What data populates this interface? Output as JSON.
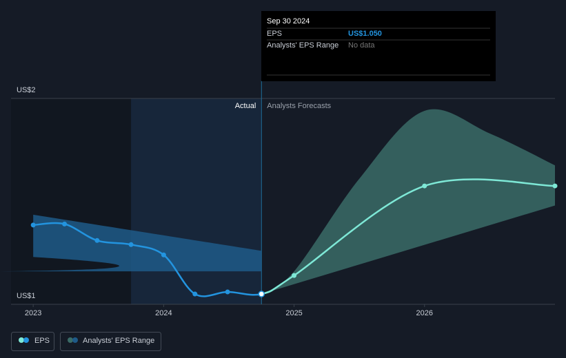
{
  "chart_data": {
    "type": "line",
    "xlim": [
      2022.83,
      2027
    ],
    "xticks": [
      2023,
      2024,
      2025,
      2026
    ],
    "ylim": [
      1,
      2
    ],
    "yticks": [
      {
        "value": 1,
        "label": "US$1"
      },
      {
        "value": 2,
        "label": "US$2"
      }
    ],
    "grid": true,
    "highlight_from": 2023.75,
    "divider_x": 2024.75,
    "actual_label": "Actual",
    "forecast_label": "Analysts Forecasts",
    "series": [
      {
        "name": "EPS",
        "color": "#2394df",
        "forecast_color": "#7ee8d6",
        "x": [
          2023.0,
          2023.24,
          2023.49,
          2023.75,
          2024.0,
          2024.24,
          2024.49,
          2024.75,
          2025.0,
          2026.0,
          2027.0
        ],
        "values": [
          1.385,
          1.39,
          1.31,
          1.29,
          1.24,
          1.05,
          1.06,
          1.05,
          1.14,
          1.575,
          1.575
        ]
      },
      {
        "name": "Analysts' EPS Range",
        "color": "#1e5a88",
        "forecast_color": "#3a6b67",
        "pieces": [
          {
            "x": [
              2023.0,
              2024.75
            ],
            "low": [
              1.23,
              1.16
            ],
            "high": [
              1.435,
              1.26
            ]
          },
          {
            "x": [
              2024.75,
              2025.0,
              2025.5,
              2026.0,
              2026.5,
              2027.0
            ],
            "low": [
              1.05,
              1.11,
              1.24,
              1.36,
              1.42,
              1.48
            ],
            "high": [
              1.05,
              1.16,
              1.61,
              1.94,
              1.83,
              1.675
            ]
          }
        ]
      }
    ],
    "tooltip": {
      "date": "Sep 30 2024",
      "eps_label": "EPS",
      "eps_value": "US$1.050",
      "range_label": "Analysts' EPS Range",
      "range_value": "No data"
    }
  }
}
